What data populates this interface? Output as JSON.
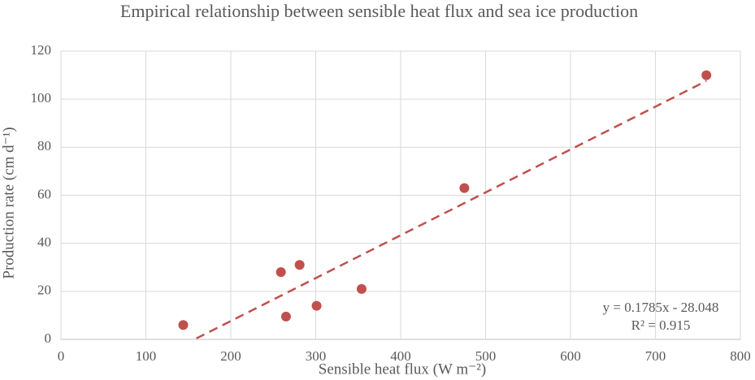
{
  "chart_data": {
    "type": "scatter",
    "title": "Empirical relationship between sensible heat flux and sea ice production",
    "x_label": "Sensible heat flux (W m⁻²)",
    "y_label": "Production rate (cm d⁻¹)",
    "series": [
      {
        "color": "#c0504d",
        "x": [
          144,
          259,
          265,
          281,
          301,
          354,
          475,
          760
        ],
        "values": [
          6,
          28,
          9.5,
          31,
          14,
          21,
          63,
          110
        ]
      }
    ],
    "trendline": {
      "slope": 0.1785,
      "intercept": -28.048,
      "color": "#c0504d",
      "label": "y = 0.1785x - 28.048",
      "r2_label": "R² = 0.915"
    },
    "xlim": [
      0,
      800
    ],
    "xticks": [
      0,
      100,
      200,
      300,
      400,
      500,
      600,
      700,
      800
    ],
    "ylim": [
      0,
      120
    ],
    "yticks": [
      0,
      20,
      40,
      60,
      80,
      100,
      120
    ],
    "grid": true
  }
}
